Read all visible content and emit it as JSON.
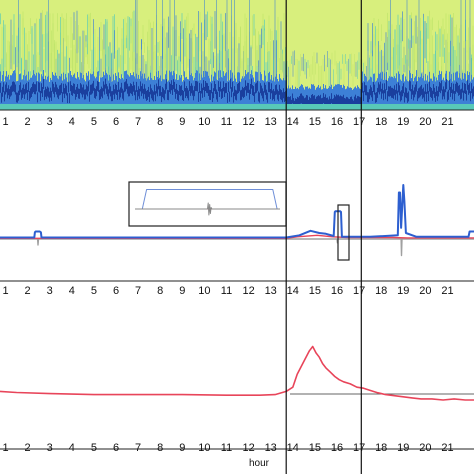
{
  "chart_data": [
    {
      "type": "heatmap",
      "x_ticks": [
        1,
        2,
        3,
        4,
        5,
        6,
        7,
        8,
        9,
        10,
        11,
        12,
        13,
        14,
        15,
        16,
        17,
        18,
        19,
        20,
        21
      ],
      "xlim": [
        0.75,
        22.2
      ],
      "colormap": [
        "#1a3f9e",
        "#3d80d6",
        "#58c9b8",
        "#bfe36a",
        "#e9f58c"
      ],
      "vertical_markers": [
        13.7,
        17.1
      ]
    },
    {
      "type": "line",
      "x_ticks": [
        1,
        2,
        3,
        4,
        5,
        6,
        7,
        8,
        9,
        10,
        11,
        12,
        13,
        14,
        15,
        16,
        17,
        18,
        19,
        20,
        21
      ],
      "xlim": [
        0.75,
        22.2
      ],
      "ylim": [
        0,
        1
      ],
      "vertical_markers": [
        13.7,
        17.1
      ],
      "series": [
        {
          "color": "#2d5fd0",
          "x": [
            0.75,
            2.3,
            2.33,
            2.36,
            2.55,
            2.6,
            2.63,
            13.7,
            14.3,
            14.8,
            15.2,
            15.5,
            15.85,
            15.9,
            15.93,
            16.15,
            16.18,
            16.22,
            17.5,
            18.75,
            18.8,
            18.85,
            18.9,
            19.0,
            19.05,
            19.12,
            19.6,
            21.95,
            22.0,
            22.2
          ],
          "y": [
            0.02,
            0.02,
            0.09,
            0.1,
            0.1,
            0.09,
            0.02,
            0.02,
            0.05,
            0.11,
            0.08,
            0.07,
            0.04,
            0.36,
            0.37,
            0.37,
            0.36,
            0.03,
            0.03,
            0.05,
            0.62,
            0.62,
            0.15,
            0.72,
            0.5,
            0.08,
            0.03,
            0.03,
            0.1,
            0.1
          ]
        },
        {
          "color": "#e8455a",
          "x": [
            0.75,
            4.0,
            8.0,
            13.7,
            14.2,
            15.1,
            15.8,
            16.5,
            17.3,
            18.5,
            19.2,
            22.2
          ],
          "y": [
            0.01,
            0.01,
            0.01,
            0.01,
            0.03,
            0.05,
            0.03,
            0.02,
            0.02,
            0.02,
            0.015,
            0.015
          ]
        },
        {
          "color": "#a0a0a0",
          "x": [
            0.75,
            2.45,
            2.47,
            2.49,
            13.7,
            16.0,
            16.02,
            16.04,
            18.9,
            18.92,
            18.94,
            22.2
          ],
          "y": [
            0,
            0,
            -0.08,
            0,
            0,
            0,
            -0.05,
            0,
            0,
            -0.22,
            0,
            0
          ]
        }
      ],
      "inset": {
        "series": [
          {
            "color": "#6f8fd8",
            "x": [
              0,
              0.05,
              0.08,
              0.95,
              0.98,
              1.0
            ],
            "y": [
              0.1,
              0.1,
              0.75,
              0.75,
              0.1,
              0.1
            ]
          },
          {
            "color": "#e8455a",
            "x": [
              0,
              1.0
            ],
            "y": [
              0.1,
              0.1
            ]
          },
          {
            "color": "#888888",
            "x": [
              0,
              0.5,
              0.505,
              0.51,
              0.515,
              0.52,
              0.525,
              0.53,
              1.0
            ],
            "y": [
              0.1,
              0.1,
              0.3,
              -0.1,
              0.25,
              -0.05,
              0.15,
              0.1,
              0.1
            ]
          }
        ]
      }
    },
    {
      "type": "line",
      "x_ticks": [
        1,
        2,
        3,
        4,
        5,
        6,
        7,
        8,
        9,
        10,
        11,
        12,
        13,
        14,
        15,
        16,
        17,
        18,
        19,
        20,
        21
      ],
      "xlim": [
        0.75,
        22.2
      ],
      "ylim": [
        0,
        1
      ],
      "xlabel": "hour",
      "vertical_markers": [
        13.7,
        17.1
      ],
      "series": [
        {
          "color": "#e8455a",
          "x": [
            0.75,
            1.5,
            3.0,
            5.0,
            7.0,
            9.0,
            11.0,
            12.5,
            13.2,
            13.7,
            14.0,
            14.2,
            14.5,
            14.75,
            14.9,
            15.05,
            15.2,
            15.35,
            15.5,
            15.7,
            15.9,
            16.1,
            16.3,
            16.6,
            16.9,
            17.2,
            17.5,
            17.8,
            18.2,
            18.6,
            19.0,
            19.4,
            19.8,
            20.3,
            20.8,
            21.3,
            21.8,
            22.2
          ],
          "y": [
            0.08,
            0.07,
            0.06,
            0.05,
            0.05,
            0.05,
            0.045,
            0.045,
            0.05,
            0.08,
            0.12,
            0.24,
            0.36,
            0.46,
            0.5,
            0.44,
            0.4,
            0.34,
            0.3,
            0.26,
            0.22,
            0.19,
            0.17,
            0.15,
            0.12,
            0.11,
            0.09,
            0.07,
            0.05,
            0.04,
            0.03,
            0.02,
            0.01,
            0.01,
            0.0,
            0.01,
            0.0,
            0.0
          ]
        }
      ]
    }
  ]
}
